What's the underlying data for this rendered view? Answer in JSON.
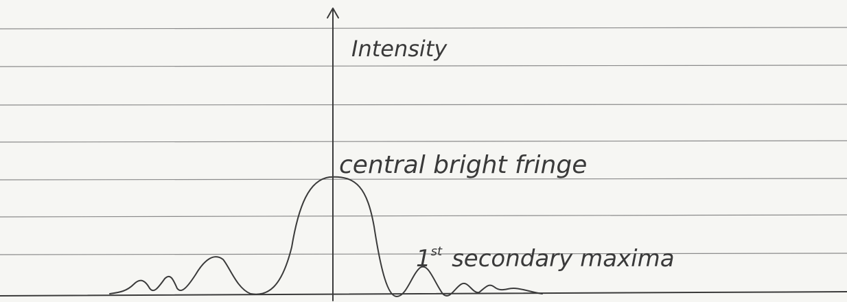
{
  "axis": {
    "label": "Intensity"
  },
  "annotations": [
    {
      "text": "central bright fringe"
    },
    {
      "ordinal": "1",
      "suffix": "st",
      "text": "secondary maxima"
    }
  ]
}
